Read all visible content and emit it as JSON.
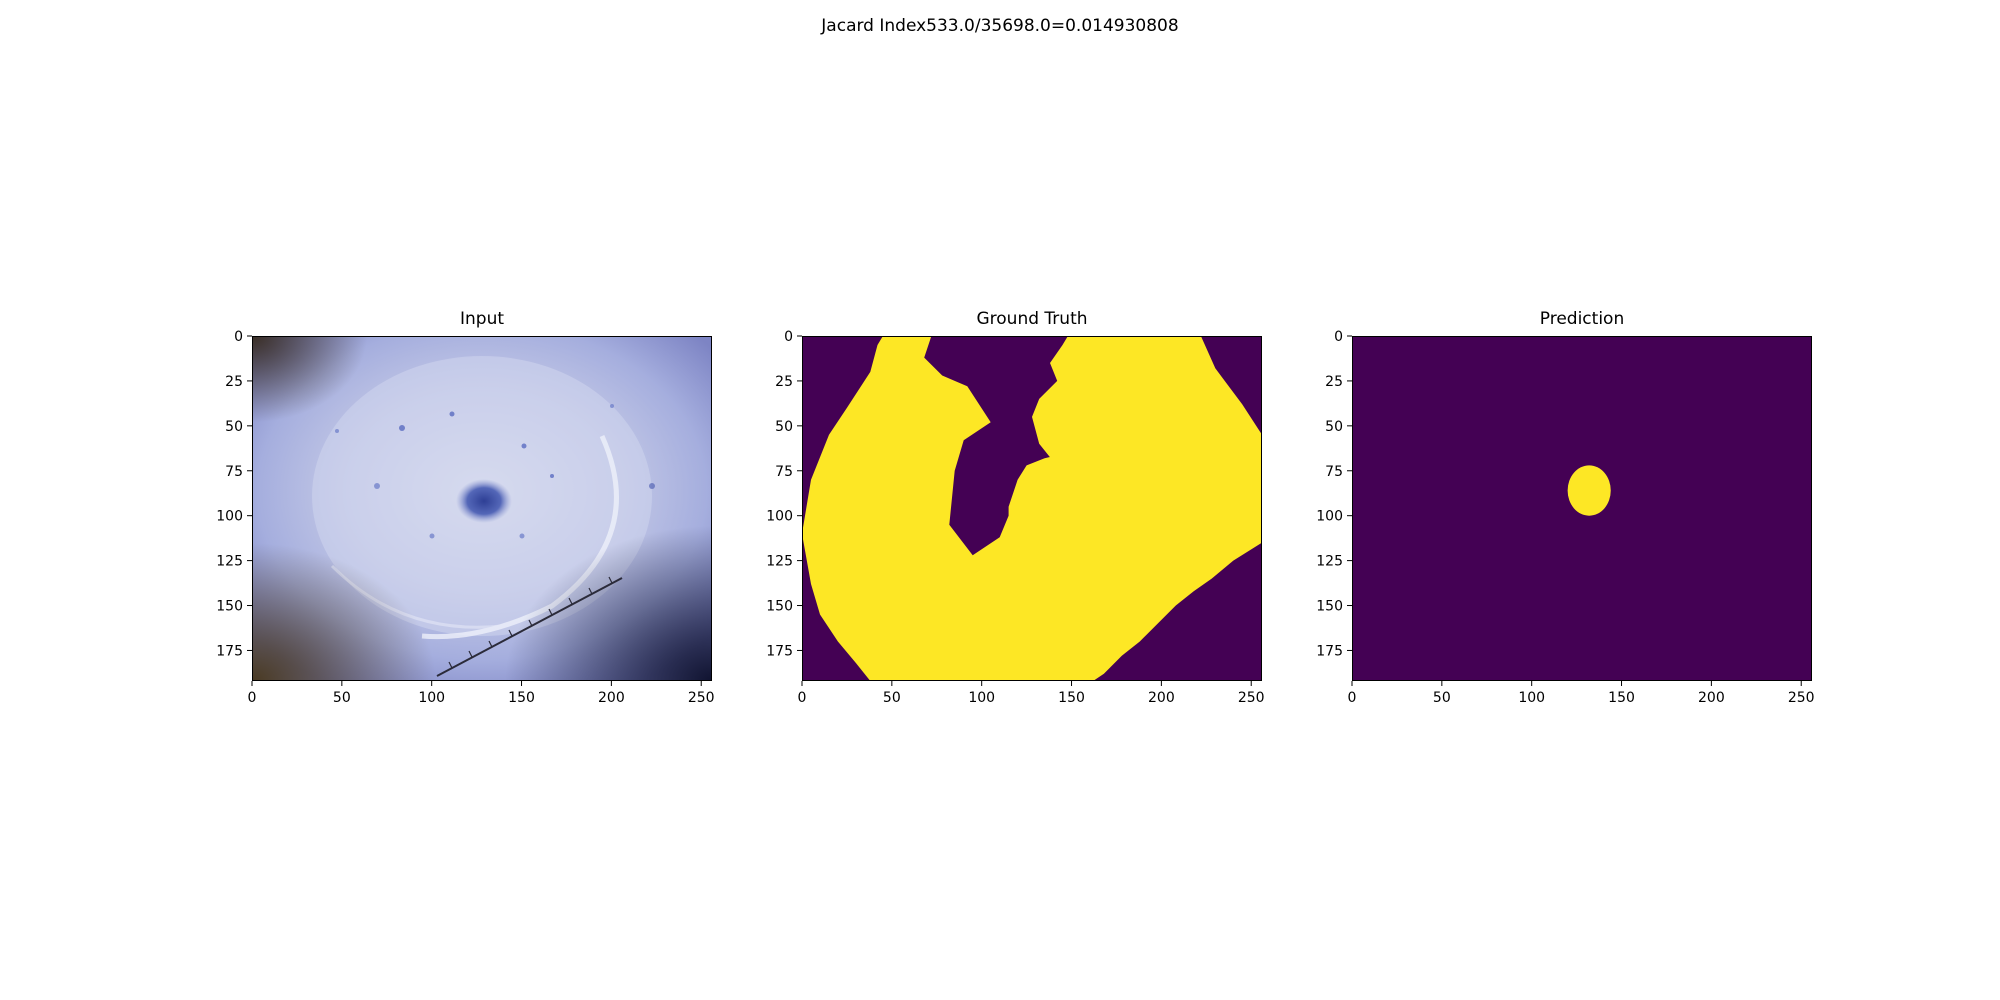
{
  "figure": {
    "suptitle": "Jacard Index533.0/35698.0=0.014930808"
  },
  "chart_data": [
    {
      "type": "image",
      "title": "Input",
      "xlabel": "",
      "ylabel": "",
      "xlim": [
        0,
        256
      ],
      "ylim": [
        192,
        0
      ],
      "xticks": [
        0,
        50,
        100,
        150,
        200,
        250
      ],
      "yticks": [
        0,
        25,
        50,
        75,
        100,
        125,
        150,
        175
      ],
      "content": "dermoscopy photograph of skin lesion with blue stain and ruler marks"
    },
    {
      "type": "heatmap",
      "title": "Ground Truth",
      "xlabel": "",
      "ylabel": "",
      "xlim": [
        0,
        256
      ],
      "ylim": [
        192,
        0
      ],
      "xticks": [
        0,
        50,
        100,
        150,
        200,
        250
      ],
      "yticks": [
        0,
        25,
        50,
        75,
        100,
        125,
        150,
        175
      ],
      "colormap": "viridis",
      "colors": {
        "background": "#440154",
        "foreground": "#fde725"
      },
      "mask_polygon": [
        [
          0,
          110
        ],
        [
          5,
          80
        ],
        [
          15,
          55
        ],
        [
          25,
          40
        ],
        [
          38,
          20
        ],
        [
          42,
          5
        ],
        [
          45,
          0
        ],
        [
          72,
          0
        ],
        [
          68,
          12
        ],
        [
          78,
          22
        ],
        [
          92,
          28
        ],
        [
          105,
          48
        ],
        [
          90,
          58
        ],
        [
          85,
          75
        ],
        [
          82,
          105
        ],
        [
          95,
          122
        ],
        [
          110,
          112
        ],
        [
          115,
          100
        ],
        [
          115,
          95
        ],
        [
          120,
          80
        ],
        [
          125,
          72
        ],
        [
          135,
          68
        ],
        [
          148,
          65
        ],
        [
          160,
          72
        ],
        [
          158,
          85
        ],
        [
          145,
          95
        ],
        [
          140,
          70
        ],
        [
          132,
          60
        ],
        [
          128,
          45
        ],
        [
          132,
          35
        ],
        [
          142,
          25
        ],
        [
          138,
          15
        ],
        [
          145,
          5
        ],
        [
          148,
          0
        ],
        [
          222,
          0
        ],
        [
          230,
          18
        ],
        [
          245,
          38
        ],
        [
          256,
          55
        ],
        [
          256,
          115
        ],
        [
          240,
          125
        ],
        [
          228,
          135
        ],
        [
          218,
          142
        ],
        [
          208,
          150
        ],
        [
          198,
          160
        ],
        [
          188,
          170
        ],
        [
          178,
          178
        ],
        [
          168,
          188
        ],
        [
          162,
          192
        ],
        [
          38,
          192
        ],
        [
          30,
          182
        ],
        [
          20,
          170
        ],
        [
          10,
          155
        ],
        [
          5,
          138
        ]
      ]
    },
    {
      "type": "heatmap",
      "title": "Prediction",
      "xlabel": "",
      "ylabel": "",
      "xlim": [
        0,
        256
      ],
      "ylim": [
        192,
        0
      ],
      "xticks": [
        0,
        50,
        100,
        150,
        200,
        250
      ],
      "yticks": [
        0,
        25,
        50,
        75,
        100,
        125,
        150,
        175
      ],
      "colormap": "viridis",
      "colors": {
        "background": "#440154",
        "foreground": "#fde725"
      },
      "blob": {
        "cx": 132,
        "cy": 86,
        "rx": 12,
        "ry": 14
      }
    }
  ]
}
